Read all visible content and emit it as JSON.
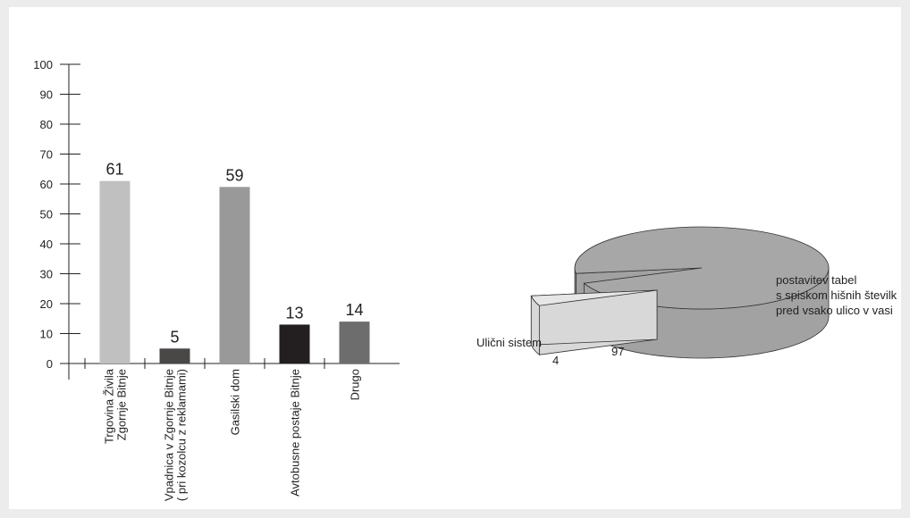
{
  "chart_data": [
    {
      "type": "bar",
      "categories": [
        [
          "Trgovina Živila",
          "Zgornje Bitnje"
        ],
        [
          "Vpadnica v Zgornje Bitnje",
          "( pri kozolcu z reklamami)"
        ],
        [
          "Gasilski dom"
        ],
        [
          "Avtobusne postaje Bitnje"
        ],
        [
          "Drugo"
        ]
      ],
      "values": [
        61,
        5,
        59,
        13,
        14
      ],
      "colors": [
        "#c0c0c0",
        "#4a4747",
        "#9a9999",
        "#231f20",
        "#6e6d6d"
      ],
      "ylim": [
        0,
        100
      ],
      "yticks": [
        0,
        10,
        20,
        30,
        40,
        50,
        60,
        70,
        80,
        90,
        100
      ]
    },
    {
      "type": "pie",
      "labels": [
        [
          "Ulični sistem"
        ],
        [
          "postavitev tabel",
          "s spiskom hišnih številk",
          "pred vsako ulico v vasi"
        ]
      ],
      "values": [
        4,
        97
      ],
      "colors": [
        "#e6e6e6",
        "#a7a7a7"
      ]
    }
  ]
}
